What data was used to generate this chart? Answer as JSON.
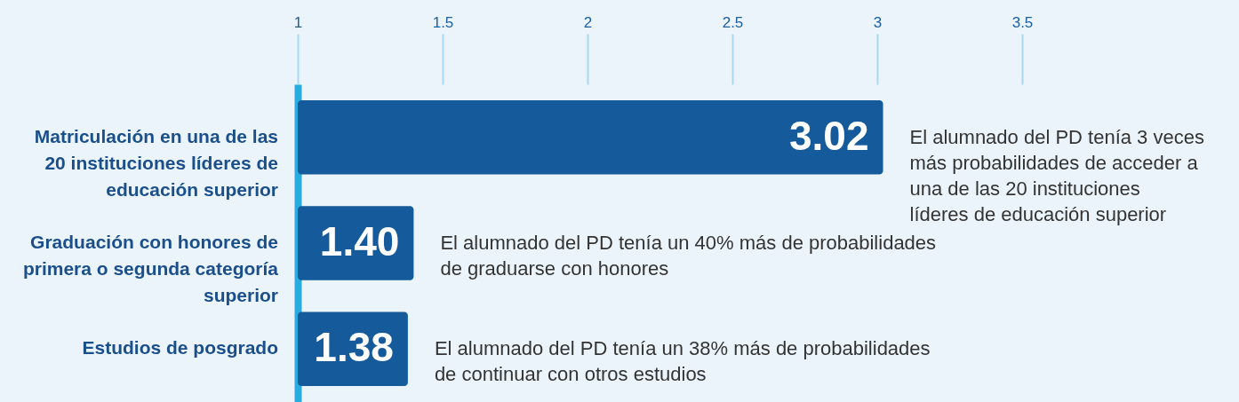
{
  "chart_data": {
    "type": "bar",
    "orientation": "horizontal",
    "categories": [
      "Matriculación en una de las 20 instituciones líderes de educación superior",
      "Graduación con honores de primera o segunda categoría superior",
      "Estudios de posgrado"
    ],
    "values": [
      3.02,
      1.4,
      1.38
    ],
    "color": "#155a9a",
    "xlim": [
      1,
      3.5
    ],
    "xticks": [
      1,
      1.5,
      2,
      2.5,
      3,
      3.5
    ],
    "value_labels": [
      "3.02",
      "1.40",
      "1.38"
    ],
    "grid": false,
    "annotations": [
      "El alumnado del PD tenía 3 veces más probabilidades de acceder a una de las 20 instituciones líderes de educación superior",
      "El alumnado del PD tenía un 40% más de probabilidades de graduarse con honores",
      "El alumnado del PD tenía un 38% más de probabilidades de continuar con otros estudios"
    ]
  }
}
